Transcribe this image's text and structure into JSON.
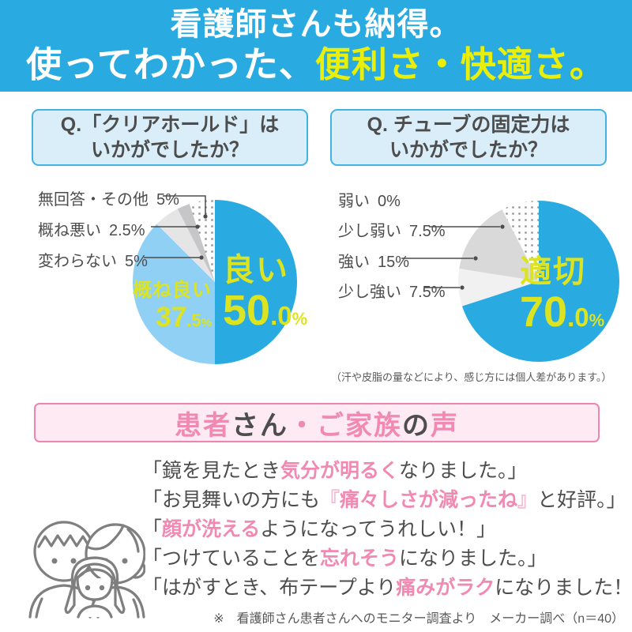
{
  "colors": {
    "blue": "#29ABE2",
    "light_blue": "#8FD0F4",
    "yellow": "#DCE421",
    "header_yellow": "#E9EF0A",
    "pink": "#F08AB2",
    "lightpink": "#F5BCD4",
    "pink_border": "#EE85B0",
    "pink_bg": "#FDEAF2",
    "box_blue_bg": "#D9EEF9",
    "box_blue_border": "#45B2E5",
    "dark": "#4D4D4D",
    "gray_note": "#595959"
  },
  "header": {
    "line1": "看護師さんも納得。",
    "line2_white": "使ってわかった、",
    "line2_yellow": "便利さ・快適さ。"
  },
  "questions": [
    {
      "line1": "Q.「クリアホールド」は",
      "line2": "いかがでしたか？"
    },
    {
      "line1": "Q. チューブの固定力は",
      "line2": "いかがでしたか？"
    }
  ],
  "chart_data": [
    {
      "type": "pie",
      "title": "Q.「クリアホールド」はいかがでしたか？",
      "start_angle_deg": -90,
      "direction": "clockwise",
      "slices": [
        {
          "label": "良い",
          "value": 50.0,
          "value_text": "50.0%",
          "color": "#29ABE2"
        },
        {
          "label": "概ね良い",
          "value": 37.5,
          "value_text": "37.5%",
          "color": "#8FD0F4"
        },
        {
          "label": "変わらない",
          "value": 5.0,
          "value_text": "5%",
          "color": "#E5E5E5"
        },
        {
          "label": "概ね悪い",
          "value": 2.5,
          "value_text": "2.5%",
          "color": "#C6C6C8"
        },
        {
          "label": "無回答・その他",
          "value": 5.0,
          "value_text": "5%",
          "color": "dotted"
        }
      ],
      "inside_labels": [
        {
          "word": "良い",
          "big": "50",
          "small": ".0",
          "unit": "%"
        },
        {
          "word": "概ね良い",
          "big": "37",
          "small": ".5",
          "unit": "%"
        }
      ]
    },
    {
      "type": "pie",
      "title": "Q. チューブの固定力はいかがでしたか？",
      "start_angle_deg": -90,
      "direction": "clockwise",
      "slices": [
        {
          "label": "適切",
          "value": 70.0,
          "value_text": "70.0%",
          "color": "#29ABE2"
        },
        {
          "label": "少し強い",
          "value": 7.5,
          "value_text": "7.5%",
          "color": "#F1F1F1"
        },
        {
          "label": "強い",
          "value": 15.0,
          "value_text": "15%",
          "color": "#D9D9D9"
        },
        {
          "label": "少し弱い",
          "value": 7.5,
          "value_text": "7.5%",
          "color": "dotted"
        },
        {
          "label": "弱い",
          "value": 0.0,
          "value_text": "0%",
          "color": "#FFFFFF"
        }
      ],
      "inside_labels": [
        {
          "word": "適切",
          "big": "70",
          "small": ".0",
          "unit": "%"
        }
      ],
      "note": "（汗や皮脂の量などにより、感じ方には個人差があります。）"
    }
  ],
  "voice_banner": {
    "segments": [
      {
        "style": "pink",
        "text": "患者"
      },
      {
        "style": "dark",
        "text": "さん"
      },
      {
        "style": "pink",
        "text": "・ご家族"
      },
      {
        "style": "dark",
        "text": "の"
      },
      {
        "style": "pink",
        "text": "声"
      }
    ]
  },
  "quotes": [
    {
      "segments": [
        {
          "style": "dark",
          "text": "「鏡を見たとき"
        },
        {
          "style": "pink",
          "text": "気分が明るく"
        },
        {
          "style": "dark",
          "text": "なりました。」"
        }
      ]
    },
    {
      "segments": [
        {
          "style": "dark",
          "text": "「お見舞いの方にも"
        },
        {
          "style": "lightpink",
          "text": "『"
        },
        {
          "style": "pink",
          "text": "痛々しさが減ったね"
        },
        {
          "style": "lightpink",
          "text": "』"
        },
        {
          "style": "dark",
          "text": "と好評。」"
        }
      ]
    },
    {
      "segments": [
        {
          "style": "dark",
          "text": "「"
        },
        {
          "style": "pink",
          "text": "顔が洗える"
        },
        {
          "style": "dark",
          "text": "ようになってうれしい！」"
        }
      ]
    },
    {
      "segments": [
        {
          "style": "dark",
          "text": "「つけていることを"
        },
        {
          "style": "pink",
          "text": "忘れそう"
        },
        {
          "style": "dark",
          "text": "になりました。」"
        }
      ]
    },
    {
      "segments": [
        {
          "style": "dark",
          "text": "「はがすとき、布テープより"
        },
        {
          "style": "pink",
          "text": "痛みがラク"
        },
        {
          "style": "dark",
          "text": "になりました！」"
        }
      ]
    }
  ],
  "footnote": "※　看護師さん患者さんへのモニター調査より　メーカー調べ（n＝40）"
}
